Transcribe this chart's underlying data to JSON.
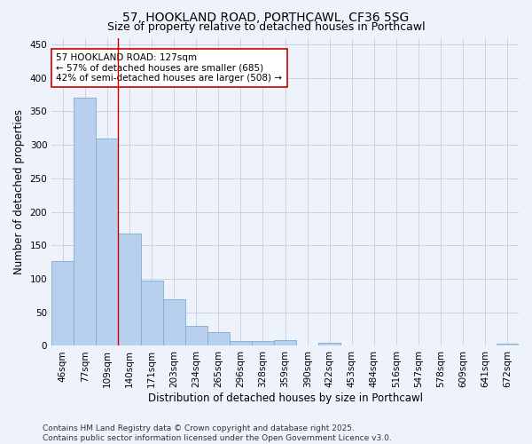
{
  "title_line1": "57, HOOKLAND ROAD, PORTHCAWL, CF36 5SG",
  "title_line2": "Size of property relative to detached houses in Porthcawl",
  "xlabel": "Distribution of detached houses by size in Porthcawl",
  "ylabel": "Number of detached properties",
  "categories": [
    "46sqm",
    "77sqm",
    "109sqm",
    "140sqm",
    "171sqm",
    "203sqm",
    "234sqm",
    "265sqm",
    "296sqm",
    "328sqm",
    "359sqm",
    "390sqm",
    "422sqm",
    "453sqm",
    "484sqm",
    "516sqm",
    "547sqm",
    "578sqm",
    "609sqm",
    "641sqm",
    "672sqm"
  ],
  "values": [
    127,
    370,
    310,
    168,
    97,
    70,
    30,
    20,
    7,
    7,
    9,
    0,
    4,
    0,
    0,
    0,
    0,
    0,
    0,
    0,
    3
  ],
  "bar_color": "#b8d0ed",
  "bar_edge_color": "#7aadd4",
  "background_color": "#eef2fb",
  "grid_color": "#c5cce0",
  "vline_x": 2.5,
  "vline_color": "#cc0000",
  "annotation_text": "57 HOOKLAND ROAD: 127sqm\n← 57% of detached houses are smaller (685)\n42% of semi-detached houses are larger (508) →",
  "annotation_box_color": "#ffffff",
  "annotation_box_edge": "#cc0000",
  "ylim": [
    0,
    460
  ],
  "yticks": [
    0,
    50,
    100,
    150,
    200,
    250,
    300,
    350,
    400,
    450
  ],
  "footer_line1": "Contains HM Land Registry data © Crown copyright and database right 2025.",
  "footer_line2": "Contains public sector information licensed under the Open Government Licence v3.0.",
  "title_fontsize": 10,
  "subtitle_fontsize": 9,
  "axis_label_fontsize": 8.5,
  "tick_fontsize": 7.5,
  "annotation_fontsize": 7.5,
  "footer_fontsize": 6.5
}
